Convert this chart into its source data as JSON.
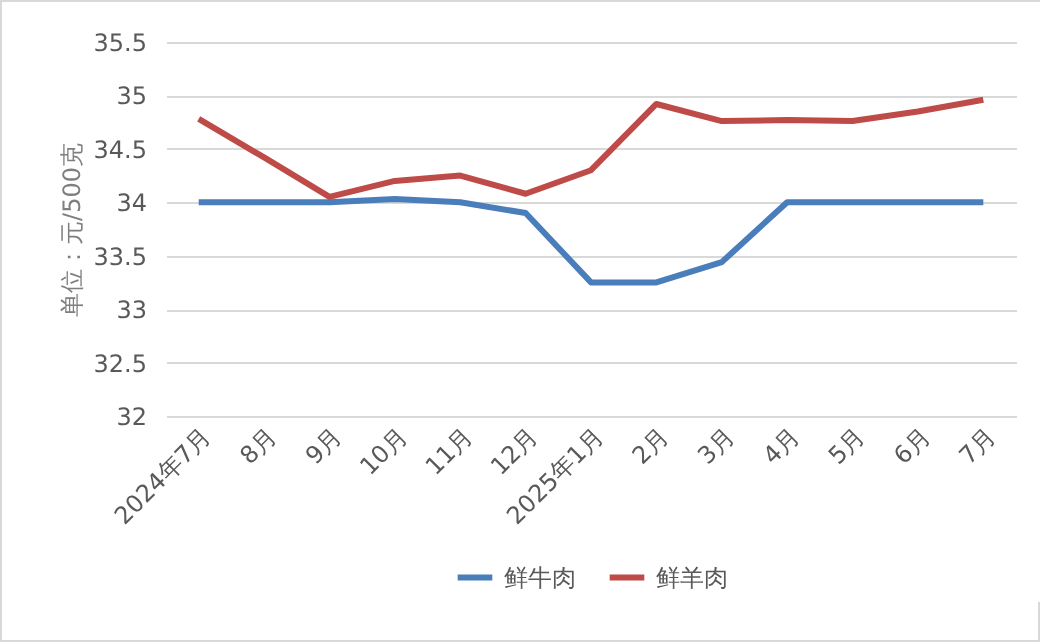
{
  "chart_data": {
    "type": "line",
    "ylabel": "单位：元/500克",
    "categories": [
      "2024年7月",
      "8月",
      "9月",
      "10月",
      "11月",
      "12月",
      "2025年1月",
      "2月",
      "3月",
      "4月",
      "5月",
      "6月",
      "7月"
    ],
    "series": [
      {
        "name": "鲜牛肉",
        "color": "#4a7ebb",
        "values": [
          34,
          34,
          34,
          34.03,
          34,
          33.9,
          33.25,
          33.25,
          33.44,
          34,
          34,
          34,
          34
        ]
      },
      {
        "name": "鲜羊肉",
        "color": "#be4b48",
        "values": [
          34.78,
          34.42,
          34.05,
          34.2,
          34.25,
          34.08,
          34.3,
          34.92,
          34.76,
          34.77,
          34.76,
          34.85,
          34.96
        ]
      }
    ],
    "ylim": [
      32,
      35.5
    ],
    "yticks": [
      32,
      32.5,
      33,
      33.5,
      34,
      34.5,
      35,
      35.5
    ],
    "grid": "y",
    "legend": "bottom",
    "marker": "none",
    "line_style": "solid"
  }
}
